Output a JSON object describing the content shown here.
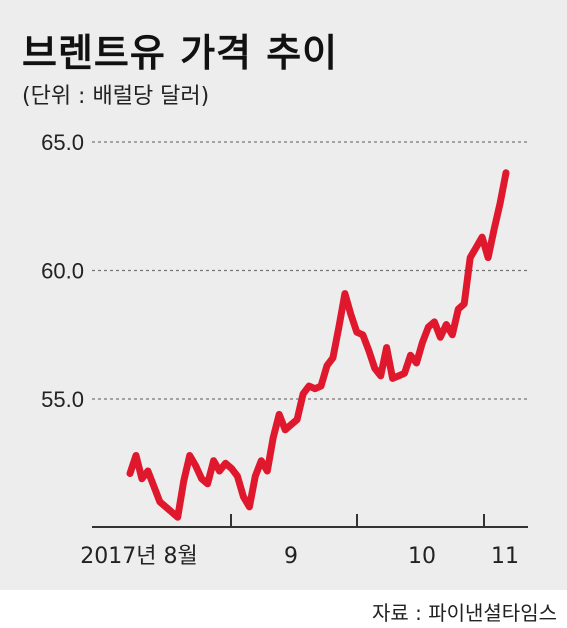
{
  "chart_data": {
    "type": "line",
    "title": "브렌트유 가격 추이",
    "subtitle": "(단위 : 배럴당 달러)",
    "source": "자료 : 파이낸셜타임스",
    "ylim": [
      50,
      66
    ],
    "y_ticks": [
      "65.0",
      "60.0",
      "55.0"
    ],
    "x_tick_labels": [
      "2017년 8월",
      "9",
      "10",
      "11"
    ],
    "grid": true,
    "series": [
      {
        "color": "#e0182d",
        "values": [
          52.1,
          52.8,
          51.9,
          52.2,
          51.6,
          51.0,
          50.8,
          50.6,
          50.4,
          51.8,
          52.8,
          52.4,
          51.9,
          51.7,
          52.6,
          52.2,
          52.5,
          52.3,
          52.0,
          51.2,
          50.8,
          52.0,
          52.6,
          52.2,
          53.5,
          54.4,
          53.8,
          54.0,
          54.2,
          55.2,
          55.5,
          55.4,
          55.5,
          56.3,
          56.6,
          57.8,
          59.1,
          58.3,
          57.6,
          57.5,
          56.9,
          56.2,
          55.9,
          57.0,
          55.8,
          55.9,
          56.0,
          56.7,
          56.4,
          57.2,
          57.8,
          58.0,
          57.4,
          57.9,
          57.5,
          58.5,
          58.7,
          60.5,
          60.9,
          61.3,
          60.5,
          61.6,
          62.6,
          63.8
        ]
      }
    ]
  }
}
